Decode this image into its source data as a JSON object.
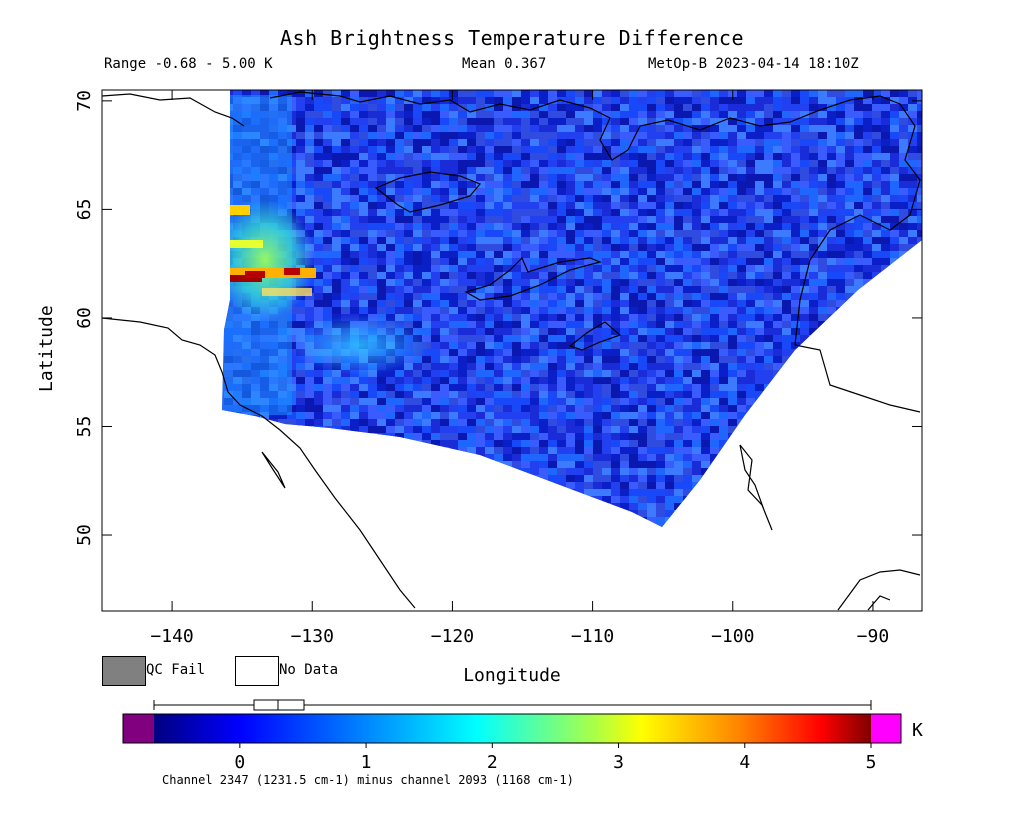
{
  "header": {
    "title": "Ash Brightness Temperature Difference",
    "range": "Range -0.68 - 5.00 K",
    "mean": "Mean 0.367",
    "source": "MetOp-B 2023-04-14 18:10Z"
  },
  "axes": {
    "ylabel": "Latitude",
    "xlabel": "Longitude",
    "lat_ticks": [
      "70",
      "65",
      "60",
      "55",
      "50"
    ],
    "lon_ticks": [
      "-140",
      "-130",
      "-120",
      "-110",
      "-100",
      "-90"
    ],
    "lat_range": [
      46.5,
      70.5
    ],
    "lon_range": [
      -145,
      -86.5
    ]
  },
  "legend": {
    "qc_fail": "QC Fail",
    "no_data": "No Data",
    "qc_fail_color": "#808080",
    "no_data_color": "#ffffff"
  },
  "colorbar": {
    "unit": "K",
    "ticks": [
      "0",
      "1",
      "2",
      "3",
      "4",
      "5"
    ],
    "range": [
      -0.9,
      5.25
    ],
    "below_color": "#800080",
    "above_color": "#ff00ff",
    "note": "Channel 2347 (1231.5 cm-1) minus channel 2093 (1168 cm-1)"
  },
  "map": {
    "background_color": "#2a3fe8",
    "features": [
      "volcanic-ash-plume-signal",
      "coastline-overlay"
    ]
  }
}
